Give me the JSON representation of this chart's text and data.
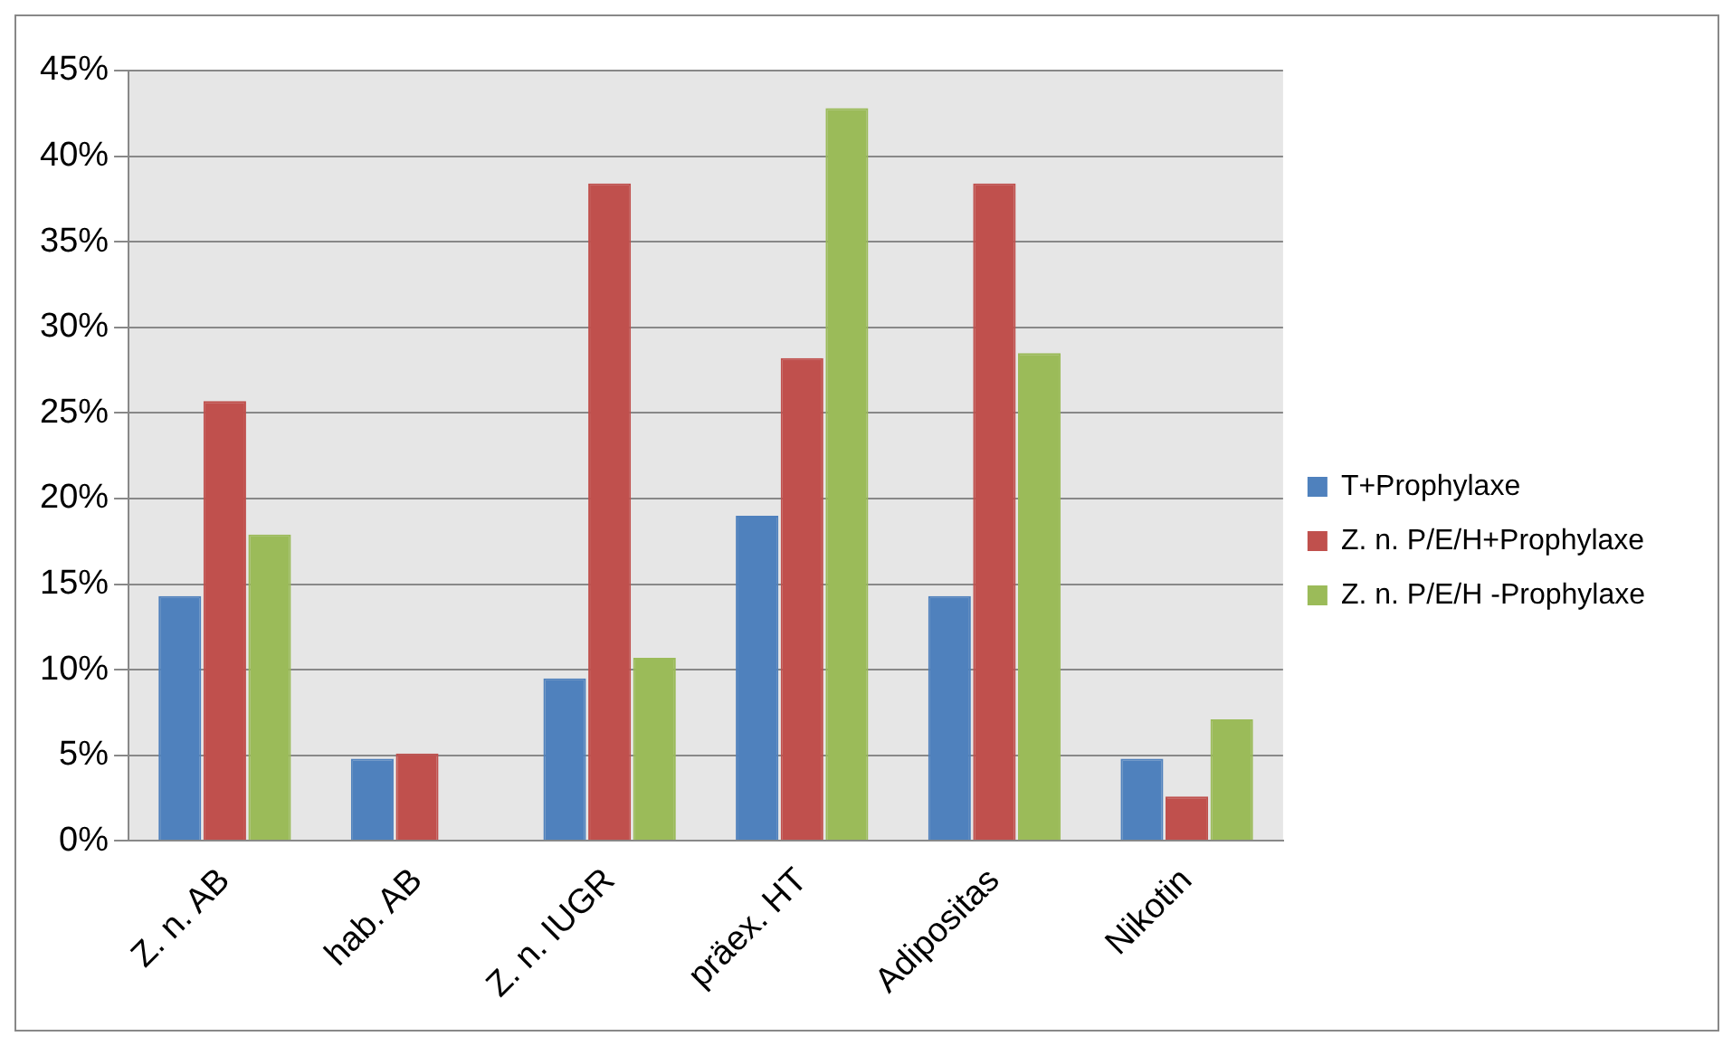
{
  "chart_data": {
    "type": "bar",
    "categories": [
      "Z. n. AB",
      "hab. AB",
      "Z. n. IUGR",
      "präex. HT",
      "Adipositas",
      "Nikotin"
    ],
    "series": [
      {
        "name": "T+Prophylaxe",
        "color": "#4f81bd",
        "values": [
          14.3,
          4.8,
          9.5,
          19,
          14.3,
          4.8
        ]
      },
      {
        "name": "Z. n. P/E/H+Prophylaxe",
        "color": "#c0504d",
        "values": [
          25.7,
          5.1,
          38.4,
          28.2,
          38.4,
          2.6
        ]
      },
      {
        "name": "Z. n. P/E/H -Prophylaxe",
        "color": "#9bbb59",
        "values": [
          17.9,
          0,
          10.7,
          42.8,
          28.5,
          7.1
        ]
      }
    ],
    "ylim": [
      0,
      45
    ],
    "yticks": [
      {
        "value": 0,
        "label": "0%"
      },
      {
        "value": 5,
        "label": "5%"
      },
      {
        "value": 10,
        "label": "10%"
      },
      {
        "value": 15,
        "label": "15%"
      },
      {
        "value": 20,
        "label": "20%"
      },
      {
        "value": 25,
        "label": "25%"
      },
      {
        "value": 30,
        "label": "30%"
      },
      {
        "value": 35,
        "label": "35%"
      },
      {
        "value": 40,
        "label": "40%"
      },
      {
        "value": 45,
        "label": "45%"
      }
    ],
    "grid": "y",
    "legend": "right"
  }
}
